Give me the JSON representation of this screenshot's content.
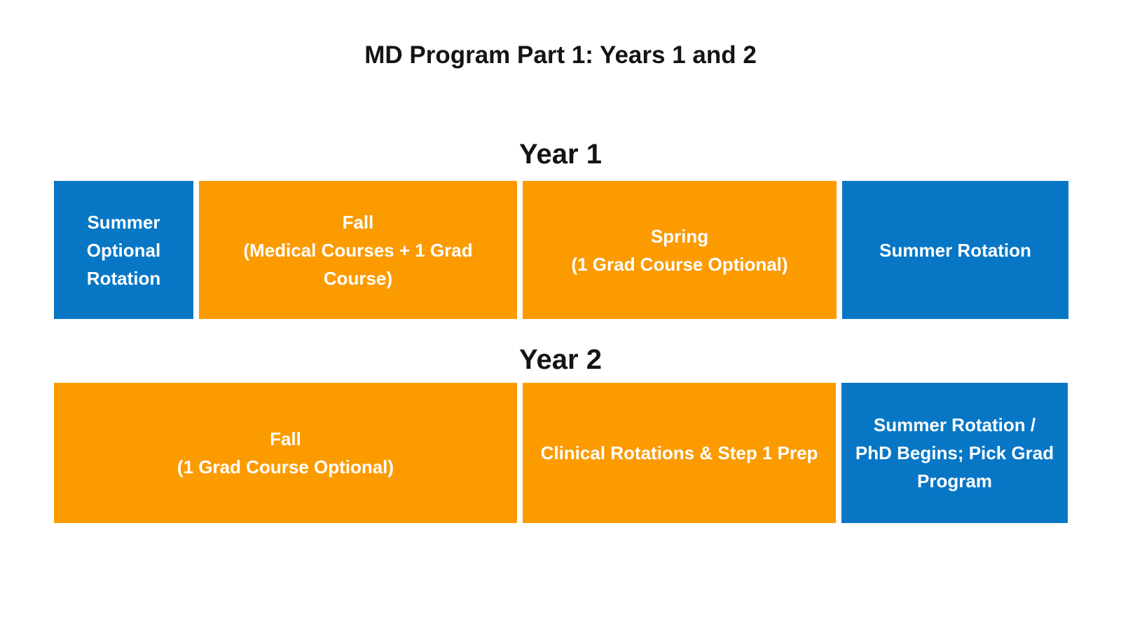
{
  "page": {
    "title": "MD Program Part 1: Years 1 and 2",
    "background": "#ffffff"
  },
  "colors": {
    "orange": "#fb9b00",
    "blue": "#0777c5",
    "block_text": "#ffffff",
    "heading_text": "#141414"
  },
  "sections": [
    {
      "heading": "Year 1",
      "blocks": [
        {
          "color": "blue",
          "lines": [
            "Summer",
            "Optional",
            "Rotation"
          ]
        },
        {
          "color": "orange",
          "lines": [
            "Fall",
            "(Medical Courses + 1 Grad",
            "Course)"
          ]
        },
        {
          "color": "orange",
          "lines": [
            "Spring",
            "(1 Grad Course Optional)"
          ]
        },
        {
          "color": "blue",
          "lines": [
            "Summer Rotation"
          ]
        }
      ]
    },
    {
      "heading": "Year 2",
      "blocks": [
        {
          "color": "orange",
          "lines": [
            "Fall",
            "(1 Grad Course Optional)"
          ]
        },
        {
          "color": "orange",
          "lines": [
            "Clinical Rotations & Step 1 Prep"
          ]
        },
        {
          "color": "blue",
          "lines": [
            "Summer Rotation /",
            "PhD Begins; Pick Grad",
            "Program"
          ]
        }
      ]
    }
  ]
}
